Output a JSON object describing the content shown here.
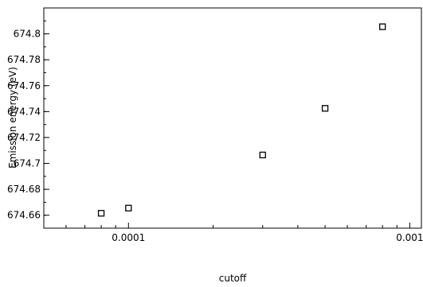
{
  "chart_data": {
    "type": "scatter",
    "xscale": "log",
    "xlabel": "cutoff",
    "ylabel": "Emission energy (eV)",
    "xlim": [
      5e-05,
      0.0011
    ],
    "ylim": [
      674.65,
      674.82
    ],
    "xticks": [
      {
        "value": 0.0001,
        "label": "0.0001"
      },
      {
        "value": 0.001,
        "label": "0.001"
      }
    ],
    "yticks": [
      {
        "value": 674.66,
        "label": "674.66"
      },
      {
        "value": 674.68,
        "label": "674.68"
      },
      {
        "value": 674.7,
        "label": "674.7"
      },
      {
        "value": 674.72,
        "label": "674.72"
      },
      {
        "value": 674.74,
        "label": "674.74"
      },
      {
        "value": 674.76,
        "label": "674.76"
      },
      {
        "value": 674.78,
        "label": "674.78"
      },
      {
        "value": 674.8,
        "label": "674.8"
      }
    ],
    "marker": "open-square",
    "grid": false,
    "series": [
      {
        "x": [
          8e-05,
          0.0001,
          0.0003,
          0.0005,
          0.0008
        ],
        "y": [
          674.6615,
          674.6655,
          674.7065,
          674.7425,
          674.8055
        ]
      }
    ]
  }
}
